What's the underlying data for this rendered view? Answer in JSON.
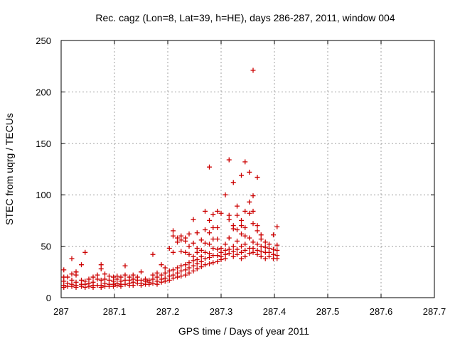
{
  "chart_data": {
    "type": "scatter",
    "title": "Rec. cagz (Lon=8, Lat=39, h=HE), days 286-287, 2011, window 004",
    "xlabel": "GPS time / Days of year 2011",
    "ylabel": "STEC from uqrg / TECUs",
    "xlim": [
      287,
      287.7
    ],
    "ylim": [
      0,
      250
    ],
    "xticks": [
      "287",
      "287.1",
      "287.2",
      "287.3",
      "287.4",
      "287.5",
      "287.6",
      "287.7"
    ],
    "yticks": [
      "0",
      "50",
      "100",
      "150",
      "200",
      "250"
    ],
    "grid": true,
    "marker": "+",
    "color": "#cc0000",
    "points": [
      [
        287.005,
        27
      ],
      [
        287.005,
        20
      ],
      [
        287.005,
        16
      ],
      [
        287.005,
        12
      ],
      [
        287.005,
        10
      ],
      [
        287.012,
        20
      ],
      [
        287.012,
        14
      ],
      [
        287.012,
        11
      ],
      [
        287.02,
        38
      ],
      [
        287.02,
        23
      ],
      [
        287.02,
        17
      ],
      [
        287.02,
        13
      ],
      [
        287.02,
        11
      ],
      [
        287.028,
        25
      ],
      [
        287.028,
        22
      ],
      [
        287.028,
        15
      ],
      [
        287.028,
        12
      ],
      [
        287.028,
        10
      ],
      [
        287.038,
        32
      ],
      [
        287.038,
        17
      ],
      [
        287.038,
        13
      ],
      [
        287.038,
        11
      ],
      [
        287.045,
        44
      ],
      [
        287.045,
        16
      ],
      [
        287.045,
        13
      ],
      [
        287.045,
        10
      ],
      [
        287.052,
        18
      ],
      [
        287.052,
        14
      ],
      [
        287.052,
        11
      ],
      [
        287.06,
        20
      ],
      [
        287.06,
        15
      ],
      [
        287.06,
        12
      ],
      [
        287.06,
        10
      ],
      [
        287.068,
        22
      ],
      [
        287.068,
        18
      ],
      [
        287.068,
        12
      ],
      [
        287.075,
        32
      ],
      [
        287.075,
        28
      ],
      [
        287.075,
        17
      ],
      [
        287.075,
        12
      ],
      [
        287.075,
        10
      ],
      [
        287.082,
        23
      ],
      [
        287.082,
        18
      ],
      [
        287.082,
        14
      ],
      [
        287.082,
        11
      ],
      [
        287.09,
        21
      ],
      [
        287.09,
        17
      ],
      [
        287.09,
        13
      ],
      [
        287.09,
        11
      ],
      [
        287.098,
        20
      ],
      [
        287.098,
        16
      ],
      [
        287.098,
        13
      ],
      [
        287.098,
        11
      ],
      [
        287.105,
        21
      ],
      [
        287.105,
        18
      ],
      [
        287.105,
        14
      ],
      [
        287.105,
        12
      ],
      [
        287.112,
        20
      ],
      [
        287.112,
        16
      ],
      [
        287.112,
        13
      ],
      [
        287.112,
        11
      ],
      [
        287.12,
        31
      ],
      [
        287.12,
        22
      ],
      [
        287.12,
        17
      ],
      [
        287.12,
        13
      ],
      [
        287.128,
        20
      ],
      [
        287.128,
        17
      ],
      [
        287.128,
        14
      ],
      [
        287.128,
        12
      ],
      [
        287.135,
        22
      ],
      [
        287.135,
        18
      ],
      [
        287.135,
        15
      ],
      [
        287.135,
        12
      ],
      [
        287.143,
        20
      ],
      [
        287.143,
        17
      ],
      [
        287.143,
        14
      ],
      [
        287.15,
        25
      ],
      [
        287.15,
        17
      ],
      [
        287.15,
        14
      ],
      [
        287.15,
        12
      ],
      [
        287.158,
        18
      ],
      [
        287.158,
        16
      ],
      [
        287.158,
        13
      ],
      [
        287.165,
        17
      ],
      [
        287.165,
        15
      ],
      [
        287.165,
        13
      ],
      [
        287.172,
        42
      ],
      [
        287.172,
        22
      ],
      [
        287.172,
        18
      ],
      [
        287.172,
        14
      ],
      [
        287.18,
        24
      ],
      [
        287.18,
        20
      ],
      [
        287.18,
        16
      ],
      [
        287.18,
        13
      ],
      [
        287.188,
        32
      ],
      [
        287.188,
        22
      ],
      [
        287.188,
        18
      ],
      [
        287.188,
        15
      ],
      [
        287.195,
        29
      ],
      [
        287.195,
        24
      ],
      [
        287.195,
        19
      ],
      [
        287.195,
        16
      ],
      [
        287.203,
        48
      ],
      [
        287.203,
        26
      ],
      [
        287.203,
        21
      ],
      [
        287.203,
        17
      ],
      [
        287.21,
        65
      ],
      [
        287.21,
        60
      ],
      [
        287.21,
        44
      ],
      [
        287.21,
        27
      ],
      [
        287.21,
        22
      ],
      [
        287.21,
        19
      ],
      [
        287.218,
        58
      ],
      [
        287.218,
        54
      ],
      [
        287.218,
        29
      ],
      [
        287.218,
        24
      ],
      [
        287.218,
        20
      ],
      [
        287.225,
        60
      ],
      [
        287.225,
        56
      ],
      [
        287.225,
        45
      ],
      [
        287.225,
        31
      ],
      [
        287.225,
        26
      ],
      [
        287.225,
        21
      ],
      [
        287.233,
        58
      ],
      [
        287.233,
        55
      ],
      [
        287.233,
        44
      ],
      [
        287.233,
        32
      ],
      [
        287.233,
        27
      ],
      [
        287.233,
        22
      ],
      [
        287.24,
        62
      ],
      [
        287.24,
        50
      ],
      [
        287.24,
        42
      ],
      [
        287.24,
        34
      ],
      [
        287.24,
        29
      ],
      [
        287.24,
        24
      ],
      [
        287.248,
        76
      ],
      [
        287.248,
        53
      ],
      [
        287.248,
        40
      ],
      [
        287.248,
        36
      ],
      [
        287.248,
        31
      ],
      [
        287.248,
        26
      ],
      [
        287.255,
        63
      ],
      [
        287.255,
        48
      ],
      [
        287.255,
        44
      ],
      [
        287.255,
        37
      ],
      [
        287.255,
        33
      ],
      [
        287.255,
        28
      ],
      [
        287.263,
        56
      ],
      [
        287.263,
        46
      ],
      [
        287.263,
        40
      ],
      [
        287.263,
        35
      ],
      [
        287.263,
        30
      ],
      [
        287.27,
        84
      ],
      [
        287.27,
        66
      ],
      [
        287.27,
        53
      ],
      [
        287.27,
        44
      ],
      [
        287.27,
        38
      ],
      [
        287.27,
        32
      ],
      [
        287.278,
        127
      ],
      [
        287.278,
        75
      ],
      [
        287.278,
        63
      ],
      [
        287.278,
        52
      ],
      [
        287.278,
        43
      ],
      [
        287.278,
        39
      ],
      [
        287.278,
        33
      ],
      [
        287.285,
        81
      ],
      [
        287.285,
        68
      ],
      [
        287.285,
        57
      ],
      [
        287.285,
        48
      ],
      [
        287.285,
        41
      ],
      [
        287.285,
        34
      ],
      [
        287.293,
        84
      ],
      [
        287.293,
        68
      ],
      [
        287.293,
        57
      ],
      [
        287.293,
        47
      ],
      [
        287.293,
        41
      ],
      [
        287.293,
        35
      ],
      [
        287.3,
        82
      ],
      [
        287.3,
        48
      ],
      [
        287.3,
        44
      ],
      [
        287.3,
        40
      ],
      [
        287.3,
        37
      ],
      [
        287.308,
        100
      ],
      [
        287.308,
        52
      ],
      [
        287.308,
        46
      ],
      [
        287.308,
        42
      ],
      [
        287.308,
        38
      ],
      [
        287.315,
        134
      ],
      [
        287.315,
        80
      ],
      [
        287.315,
        76
      ],
      [
        287.315,
        58
      ],
      [
        287.315,
        47
      ],
      [
        287.315,
        43
      ],
      [
        287.323,
        112
      ],
      [
        287.323,
        70
      ],
      [
        287.323,
        67
      ],
      [
        287.323,
        50
      ],
      [
        287.323,
        45
      ],
      [
        287.323,
        40
      ],
      [
        287.33,
        89
      ],
      [
        287.33,
        80
      ],
      [
        287.33,
        66
      ],
      [
        287.33,
        55
      ],
      [
        287.33,
        47
      ],
      [
        287.33,
        42
      ],
      [
        287.338,
        119
      ],
      [
        287.338,
        75
      ],
      [
        287.338,
        70
      ],
      [
        287.338,
        62
      ],
      [
        287.338,
        50
      ],
      [
        287.338,
        44
      ],
      [
        287.338,
        38
      ],
      [
        287.345,
        132
      ],
      [
        287.345,
        84
      ],
      [
        287.345,
        68
      ],
      [
        287.345,
        60
      ],
      [
        287.345,
        52
      ],
      [
        287.345,
        46
      ],
      [
        287.345,
        40
      ],
      [
        287.353,
        122
      ],
      [
        287.353,
        93
      ],
      [
        287.353,
        82
      ],
      [
        287.353,
        58
      ],
      [
        287.353,
        48
      ],
      [
        287.353,
        43
      ],
      [
        287.36,
        221
      ],
      [
        287.36,
        99
      ],
      [
        287.36,
        84
      ],
      [
        287.36,
        72
      ],
      [
        287.36,
        54
      ],
      [
        287.36,
        48
      ],
      [
        287.36,
        44
      ],
      [
        287.368,
        117
      ],
      [
        287.368,
        70
      ],
      [
        287.368,
        65
      ],
      [
        287.368,
        52
      ],
      [
        287.368,
        46
      ],
      [
        287.368,
        42
      ],
      [
        287.375,
        61
      ],
      [
        287.375,
        57
      ],
      [
        287.375,
        50
      ],
      [
        287.375,
        45
      ],
      [
        287.375,
        40
      ],
      [
        287.383,
        54
      ],
      [
        287.383,
        49
      ],
      [
        287.383,
        44
      ],
      [
        287.383,
        38
      ],
      [
        287.39,
        52
      ],
      [
        287.39,
        48
      ],
      [
        287.39,
        44
      ],
      [
        287.39,
        40
      ],
      [
        287.398,
        61
      ],
      [
        287.398,
        47
      ],
      [
        287.398,
        42
      ],
      [
        287.398,
        38
      ],
      [
        287.405,
        69
      ],
      [
        287.405,
        51
      ],
      [
        287.405,
        46
      ],
      [
        287.405,
        41
      ],
      [
        287.405,
        38
      ]
    ]
  }
}
